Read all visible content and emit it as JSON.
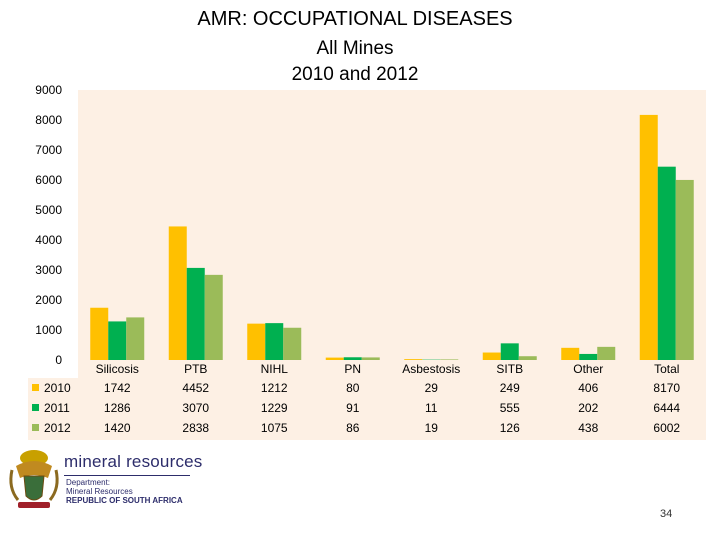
{
  "slide": {
    "title_line1": "AMR: OCCUPATIONAL DISEASES",
    "title_line2": "All Mines",
    "title_line3": "2010 and 2012",
    "page_number": "34"
  },
  "footer": {
    "org_name": "mineral resources",
    "dept_line1": "Department:",
    "dept_line2": "Mineral Resources",
    "dept_line3": "REPUBLIC OF SOUTH AFRICA"
  },
  "chart_data": {
    "type": "bar",
    "title": "",
    "xlabel": "",
    "ylabel": "",
    "ylim": [
      0,
      9000
    ],
    "yticks": [
      0,
      1000,
      2000,
      3000,
      4000,
      5000,
      6000,
      7000,
      8000,
      9000
    ],
    "categories": [
      "Silicosis",
      "PTB",
      "NIHL",
      "PN",
      "Asbestosis",
      "SITB",
      "Other",
      "Total"
    ],
    "series": [
      {
        "name": "2010",
        "color": "#FFC000",
        "values": [
          1742,
          4452,
          1212,
          80,
          29,
          249,
          406,
          8170
        ]
      },
      {
        "name": "2011",
        "color": "#00B050",
        "values": [
          1286,
          3070,
          1229,
          91,
          11,
          555,
          202,
          6444
        ]
      },
      {
        "name": "2012",
        "color": "#9BBB59",
        "values": [
          1420,
          2838,
          1075,
          86,
          19,
          126,
          438,
          6002
        ]
      }
    ],
    "legend_placement": "data-table-left",
    "grid": false,
    "background": "#FDF0E4"
  }
}
